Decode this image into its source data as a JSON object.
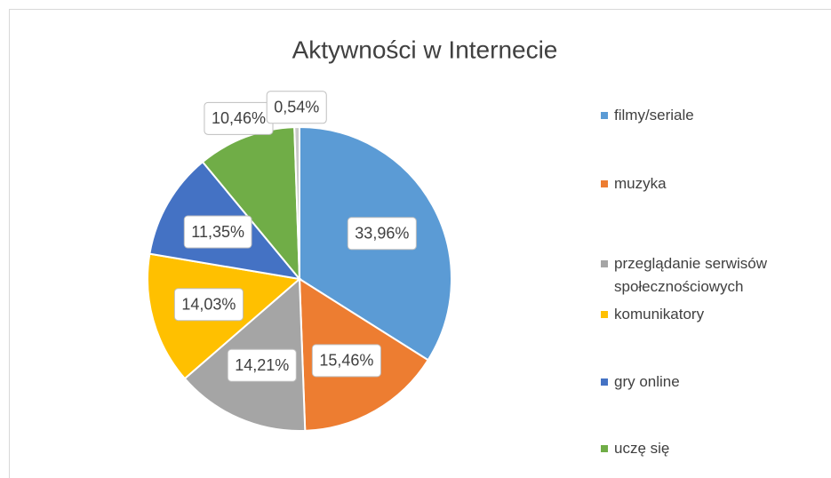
{
  "chart_data": {
    "type": "pie",
    "title": "Aktywności w Internecie",
    "categories": [
      "filmy/seriale",
      "muzyka",
      "przeglądanie serwisów społecznościowych",
      "komunikatory",
      "gry online",
      "uczę się",
      null
    ],
    "values": [
      33.96,
      15.46,
      14.21,
      14.03,
      11.35,
      10.46,
      0.54
    ],
    "value_labels": [
      "33,96%",
      "15,46%",
      "14,21%",
      "14,03%",
      "11,35%",
      "10,46%",
      "0,54%"
    ],
    "colors": [
      "#5b9bd5",
      "#ed7d31",
      "#a5a5a5",
      "#ffc000",
      "#4472c4",
      "#70ad47",
      "#c9c9c9"
    ],
    "legend": "right"
  }
}
